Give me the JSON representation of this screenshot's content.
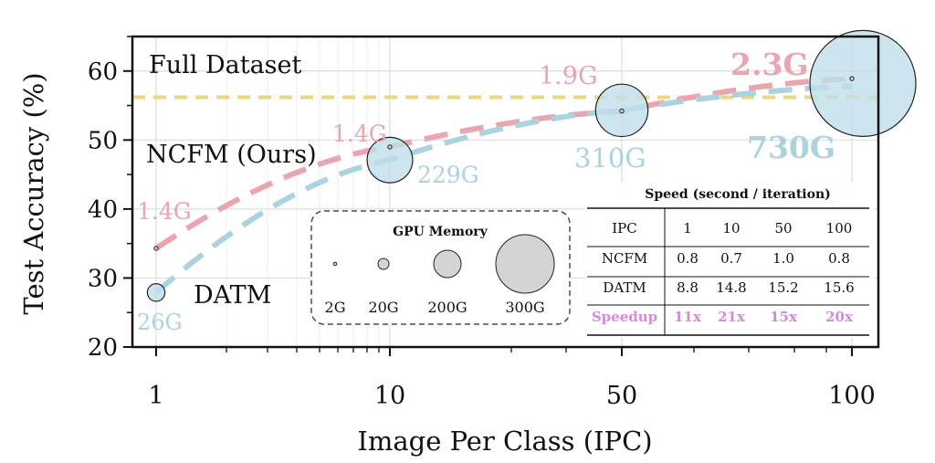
{
  "chart_data": {
    "type": "line",
    "xlabel": "Image Per Class (IPC)",
    "ylabel": "Test Accuracy (%)",
    "ylim": [
      20,
      65
    ],
    "yticks": [
      20,
      30,
      40,
      50,
      60
    ],
    "x_categories": [
      "1",
      "10",
      "50",
      "100"
    ],
    "grid": true,
    "full_dataset": {
      "label": "Full Dataset",
      "value": 56.2,
      "color": "#ecd57a"
    },
    "series": [
      {
        "name": "NCFM (Ours)",
        "color": "#eaa5b0",
        "label_color": "#111111",
        "points": [
          {
            "x": "1",
            "y": 34.3,
            "memory_gb": 1.4,
            "memory_label": "1.4G"
          },
          {
            "x": "10",
            "y": 49.0,
            "memory_gb": 1.4,
            "memory_label": "1.4G"
          },
          {
            "x": "50",
            "y": 54.2,
            "memory_gb": 1.9,
            "memory_label": "1.9G"
          },
          {
            "x": "100",
            "y": 58.9,
            "memory_gb": 2.3,
            "memory_label": "2.3G"
          }
        ]
      },
      {
        "name": "DATM",
        "color": "#aad2df",
        "label_color": "#111111",
        "points": [
          {
            "x": "1",
            "y": 27.9,
            "memory_gb": 26,
            "memory_label": "26G"
          },
          {
            "x": "10",
            "y": 47.1,
            "memory_gb": 229,
            "memory_label": "229G"
          },
          {
            "x": "50",
            "y": 54.3,
            "memory_gb": 310,
            "memory_label": "310G"
          },
          {
            "x": "100",
            "y": 57.8,
            "memory_gb": 730,
            "memory_label": "730G"
          }
        ]
      }
    ],
    "memory_legend": {
      "title": "GPU Memory",
      "items": [
        {
          "label": "2G",
          "gb": 2
        },
        {
          "label": "20G",
          "gb": 20
        },
        {
          "label": "200G",
          "gb": 200
        },
        {
          "label": "300G",
          "gb": 300
        }
      ]
    },
    "speed_table": {
      "title": "Speed (second / iteration)",
      "header": [
        "IPC",
        "1",
        "10",
        "50",
        "100"
      ],
      "rows": [
        [
          "NCFM",
          "0.8",
          "0.7",
          "1.0",
          "0.8"
        ],
        [
          "DATM",
          "8.8",
          "14.8",
          "15.2",
          "15.6"
        ]
      ],
      "speedup_row": [
        "Speedup",
        "11x",
        "21x",
        "15x",
        "20x"
      ],
      "speedup_color": "#d48ad6"
    }
  }
}
